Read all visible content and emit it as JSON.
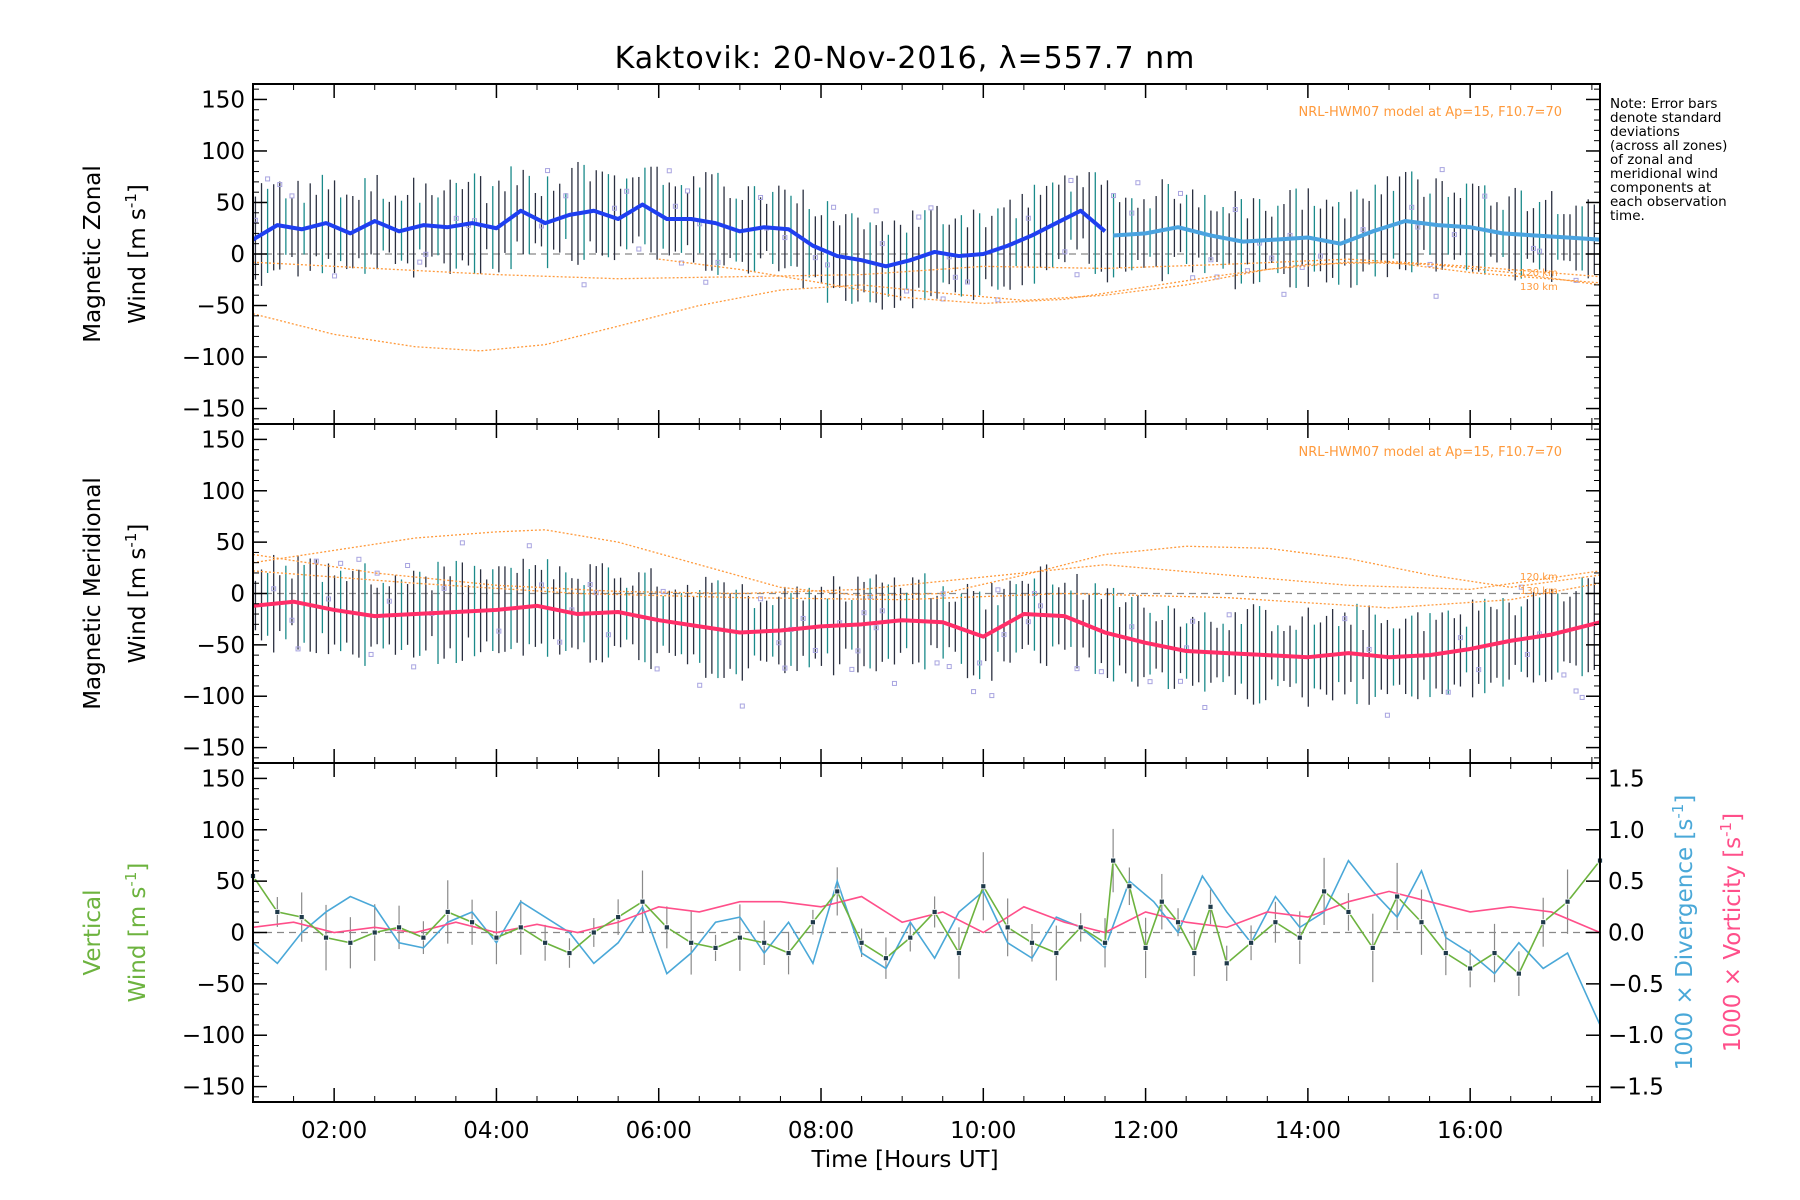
{
  "title": "Kaktovik: 20-Nov-2016, λ=557.7 nm",
  "note_lines": [
    "Note: Error bars",
    "denote standard",
    "deviations",
    "(across all zones)",
    "of zonal and",
    "meridional wind",
    "components at",
    "each observation",
    "time."
  ],
  "colors": {
    "zonal": "#1f3ff0",
    "zonal_late": "#4aa3e0",
    "meridional": "#ff2e68",
    "vertical": "#6db33f",
    "divergence": "#4aa8d8",
    "vorticity": "#ff4f8a",
    "model": "#ff9a3c",
    "scatter": "#a8a4e0",
    "errorbar": "#2b3040"
  },
  "chart_data": [
    {
      "type": "line",
      "panel": "zonal",
      "ylabel_line1": "Magnetic Zonal",
      "ylabel_line2": "Wind [m s",
      "ylabel_sup": "-1",
      "ylabel_end": "]",
      "model_label": "NRL-HWM07 model at Ap=15, F10.7=70",
      "alt_labels": [
        "120 km",
        "130 km"
      ],
      "xlim": [
        1.0,
        17.6
      ],
      "ylim": [
        -165,
        165
      ],
      "yticks": [
        150,
        100,
        50,
        0,
        -50,
        -100,
        -150
      ],
      "xticks": [
        2,
        4,
        6,
        8,
        10,
        12,
        14,
        16
      ],
      "xtick_labels": [
        "02:00",
        "04:00",
        "06:00",
        "08:00",
        "10:00",
        "12:00",
        "14:00",
        "16:00"
      ],
      "series": [
        {
          "role": "mean",
          "x": [
            1.0,
            1.3,
            1.6,
            1.9,
            2.2,
            2.5,
            2.8,
            3.1,
            3.4,
            3.7,
            4.0,
            4.3,
            4.6,
            4.9,
            5.2,
            5.5,
            5.8,
            6.1,
            6.4,
            6.7,
            7.0,
            7.3,
            7.6,
            7.9,
            8.2,
            8.5,
            8.8,
            9.1,
            9.4,
            9.7,
            10.0,
            10.3,
            10.6,
            10.9,
            11.2,
            11.5
          ],
          "values": [
            14,
            28,
            24,
            30,
            20,
            32,
            22,
            28,
            26,
            30,
            25,
            42,
            30,
            38,
            42,
            34,
            48,
            34,
            34,
            30,
            22,
            26,
            24,
            8,
            -2,
            -6,
            -12,
            -6,
            2,
            -2,
            0,
            8,
            18,
            30,
            42,
            22
          ]
        },
        {
          "role": "mean",
          "x": [
            11.6,
            12.0,
            12.4,
            12.8,
            13.2,
            13.6,
            14.0,
            14.4,
            14.8,
            15.2,
            15.6,
            16.0,
            16.4,
            16.8,
            17.2,
            17.6
          ],
          "values": [
            18,
            20,
            26,
            18,
            12,
            14,
            16,
            10,
            22,
            32,
            28,
            26,
            20,
            18,
            16,
            14
          ]
        },
        {
          "role": "model",
          "x": [
            1.0,
            2.0,
            3.0,
            3.8,
            4.6,
            5.5,
            6.5,
            7.5,
            8.5,
            9.5,
            10.5,
            11.5,
            12.5,
            13.5,
            14.5,
            15.5,
            16.5,
            17.6
          ],
          "values": [
            -58,
            -78,
            -90,
            -94,
            -88,
            -70,
            -50,
            -35,
            -30,
            -38,
            -45,
            -40,
            -30,
            -15,
            -8,
            -10,
            -18,
            -30
          ]
        },
        {
          "role": "model",
          "x": [
            1.0,
            2.5,
            4.0,
            5.5,
            7.0,
            8.5,
            10.0,
            11.5,
            13.0,
            14.5,
            16.0,
            17.6
          ],
          "values": [
            -8,
            -14,
            -20,
            -24,
            -22,
            -20,
            -12,
            -14,
            -10,
            -5,
            -12,
            -22
          ]
        },
        {
          "role": "model",
          "x": [
            6.0,
            7.0,
            8.0,
            9.0,
            10.0,
            11.0,
            12.0,
            13.0,
            14.0,
            15.0,
            16.0,
            17.6
          ],
          "values": [
            -5,
            -15,
            -28,
            -42,
            -48,
            -44,
            -32,
            -20,
            -10,
            -8,
            -18,
            -28
          ]
        }
      ]
    },
    {
      "type": "line",
      "panel": "meridional",
      "ylabel_line1": "Magnetic Meridional",
      "ylabel_line2": "Wind [m s",
      "ylabel_sup": "-1",
      "ylabel_end": "]",
      "model_label": "NRL-HWM07 model at Ap=15, F10.7=70",
      "alt_labels": [
        "120 km",
        "130 km"
      ],
      "xlim": [
        1.0,
        17.6
      ],
      "ylim": [
        -165,
        165
      ],
      "yticks": [
        150,
        100,
        50,
        0,
        -50,
        -100,
        -150
      ],
      "series": [
        {
          "role": "mean",
          "x": [
            1.0,
            1.5,
            2.0,
            2.5,
            3.0,
            3.5,
            4.0,
            4.5,
            5.0,
            5.5,
            6.0,
            6.5,
            7.0,
            7.5,
            8.0,
            8.5,
            9.0,
            9.5,
            10.0,
            10.5,
            11.0,
            11.5,
            12.0,
            12.5,
            13.0,
            13.5,
            14.0,
            14.5,
            15.0,
            15.5,
            16.0,
            16.5,
            17.0,
            17.6
          ],
          "values": [
            -12,
            -8,
            -16,
            -22,
            -20,
            -18,
            -16,
            -12,
            -20,
            -18,
            -26,
            -32,
            -38,
            -36,
            -32,
            -30,
            -26,
            -28,
            -42,
            -20,
            -22,
            -38,
            -48,
            -56,
            -58,
            -60,
            -62,
            -58,
            -62,
            -60,
            -54,
            -46,
            -40,
            -28
          ]
        },
        {
          "role": "model",
          "x": [
            1.0,
            2.0,
            3.0,
            4.0,
            4.6,
            5.5,
            6.5,
            7.5,
            8.5,
            9.5,
            10.5,
            11.5,
            12.5,
            13.5,
            14.5,
            15.5,
            16.5,
            17.6
          ],
          "values": [
            30,
            42,
            54,
            60,
            62,
            50,
            28,
            6,
            -2,
            0,
            18,
            38,
            46,
            44,
            34,
            18,
            6,
            18
          ]
        },
        {
          "role": "model",
          "x": [
            1.0,
            2.5,
            4.0,
            5.5,
            7.0,
            8.5,
            10.0,
            11.5,
            13.0,
            14.5,
            16.0,
            17.6
          ],
          "values": [
            38,
            20,
            8,
            2,
            0,
            4,
            16,
            28,
            18,
            8,
            4,
            22
          ]
        },
        {
          "role": "model",
          "x": [
            1.0,
            3.0,
            5.0,
            7.0,
            9.0,
            11.0,
            13.0,
            15.0,
            16.5,
            17.6
          ],
          "values": [
            22,
            10,
            0,
            -4,
            -6,
            0,
            -4,
            -14,
            -6,
            10
          ]
        }
      ]
    },
    {
      "type": "line",
      "panel": "vertical",
      "ylabel_line1": "Vertical",
      "ylabel_line2": "Wind [m s",
      "ylabel_sup": "-1",
      "ylabel_end": "]",
      "right_label1": "1000 × Divergence [s",
      "right_label2": "1000 × Vorticity [s",
      "right_sup": "-1",
      "right_end": "]",
      "xlabel": "Time [Hours UT]",
      "xlim": [
        1.0,
        17.6
      ],
      "ylim": [
        -165,
        165
      ],
      "yticks": [
        150,
        100,
        50,
        0,
        -50,
        -100,
        -150
      ],
      "y2lim": [
        -1.65,
        1.65
      ],
      "y2ticks": [
        1.5,
        1.0,
        0.5,
        0.0,
        -0.5,
        -1.0,
        -1.5
      ],
      "y2tick_labels": [
        "1.5",
        "1.0",
        "0.5",
        "0.0",
        "−0.5",
        "−1.0",
        "−1.5"
      ],
      "series": [
        {
          "name": "Vertical",
          "axis": "left",
          "x": [
            1.0,
            1.3,
            1.6,
            1.9,
            2.2,
            2.5,
            2.8,
            3.1,
            3.4,
            3.7,
            4.0,
            4.3,
            4.6,
            4.9,
            5.2,
            5.5,
            5.8,
            6.1,
            6.4,
            6.7,
            7.0,
            7.3,
            7.6,
            7.9,
            8.2,
            8.5,
            8.8,
            9.1,
            9.4,
            9.7,
            10.0,
            10.3,
            10.6,
            10.9,
            11.2,
            11.5,
            11.6,
            11.8,
            12.0,
            12.2,
            12.4,
            12.6,
            12.8,
            13.0,
            13.3,
            13.6,
            13.9,
            14.2,
            14.5,
            14.8,
            15.1,
            15.4,
            15.7,
            16.0,
            16.3,
            16.6,
            16.9,
            17.2,
            17.6
          ],
          "values": [
            55,
            20,
            15,
            -5,
            -10,
            0,
            5,
            -5,
            20,
            10,
            -5,
            5,
            -10,
            -20,
            0,
            15,
            30,
            5,
            -10,
            -15,
            -5,
            -10,
            -20,
            10,
            40,
            -10,
            -25,
            -5,
            20,
            -20,
            45,
            5,
            -10,
            -20,
            5,
            -10,
            70,
            45,
            -15,
            30,
            10,
            -20,
            25,
            -30,
            -10,
            10,
            -5,
            40,
            20,
            -15,
            35,
            10,
            -20,
            -35,
            -20,
            -40,
            10,
            30,
            70
          ]
        },
        {
          "name": "Divergence",
          "axis": "right",
          "x": [
            1.0,
            1.3,
            1.6,
            1.9,
            2.2,
            2.5,
            2.8,
            3.1,
            3.4,
            3.7,
            4.0,
            4.3,
            4.6,
            4.9,
            5.2,
            5.5,
            5.8,
            6.1,
            6.4,
            6.7,
            7.0,
            7.3,
            7.6,
            7.9,
            8.2,
            8.5,
            8.8,
            9.1,
            9.4,
            9.7,
            10.0,
            10.3,
            10.6,
            10.9,
            11.2,
            11.5,
            11.8,
            12.1,
            12.4,
            12.7,
            13.0,
            13.3,
            13.6,
            13.9,
            14.2,
            14.5,
            14.8,
            15.1,
            15.4,
            15.7,
            16.0,
            16.3,
            16.6,
            16.9,
            17.2,
            17.6
          ],
          "values": [
            -0.1,
            -0.3,
            0.0,
            0.2,
            0.35,
            0.25,
            -0.1,
            -0.15,
            0.1,
            0.2,
            -0.1,
            0.3,
            0.15,
            0.0,
            -0.3,
            -0.1,
            0.25,
            -0.4,
            -0.2,
            0.1,
            0.15,
            -0.2,
            0.1,
            -0.3,
            0.5,
            -0.2,
            -0.35,
            0.1,
            -0.25,
            0.2,
            0.4,
            -0.1,
            -0.25,
            0.15,
            0.05,
            -0.15,
            0.5,
            0.3,
            0.0,
            0.55,
            0.2,
            -0.1,
            0.35,
            0.05,
            0.2,
            0.7,
            0.4,
            0.15,
            0.6,
            -0.05,
            -0.2,
            -0.4,
            -0.1,
            -0.35,
            -0.2,
            -0.9
          ]
        },
        {
          "name": "Vorticity",
          "axis": "right",
          "x": [
            1.0,
            1.5,
            2.0,
            2.5,
            3.0,
            3.5,
            4.0,
            4.5,
            5.0,
            5.5,
            6.0,
            6.5,
            7.0,
            7.5,
            8.0,
            8.5,
            9.0,
            9.5,
            10.0,
            10.5,
            11.0,
            11.5,
            12.0,
            12.5,
            13.0,
            13.5,
            14.0,
            14.5,
            15.0,
            15.5,
            16.0,
            16.5,
            17.0,
            17.6
          ],
          "values": [
            0.05,
            0.1,
            0.0,
            0.05,
            0.0,
            0.1,
            0.0,
            0.08,
            0.0,
            0.1,
            0.25,
            0.2,
            0.3,
            0.3,
            0.25,
            0.35,
            0.1,
            0.2,
            0.0,
            0.25,
            0.1,
            0.0,
            0.2,
            0.1,
            0.05,
            0.2,
            0.15,
            0.3,
            0.4,
            0.3,
            0.2,
            0.25,
            0.2,
            0.0
          ]
        }
      ]
    }
  ]
}
